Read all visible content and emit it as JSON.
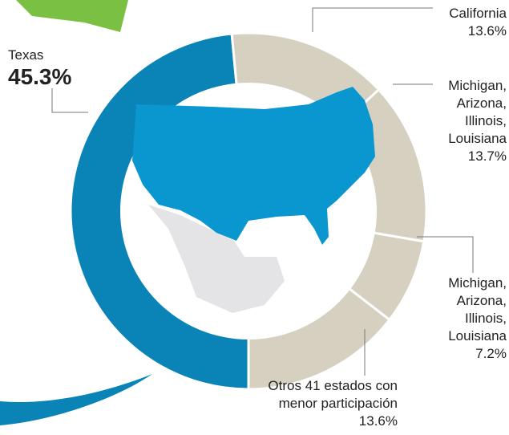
{
  "chart_data": {
    "type": "pie",
    "categories": [
      "Texas",
      "California",
      "Michigan, Arizona, Illinois, Louisiana",
      "Michigan, Arizona, Illinois, Louisiana",
      "Otros 41 estados con menor participación"
    ],
    "values": [
      45.3,
      13.6,
      13.7,
      7.2,
      13.6
    ],
    "value_labels": [
      "45.3%",
      "13.6%",
      "13.7%",
      "7.2%",
      "13.6%"
    ],
    "colors": [
      "#0a84b6",
      "#d5d0c0",
      "#d5d0c0",
      "#d5d0c0",
      "#d5d0c0"
    ]
  }
}
